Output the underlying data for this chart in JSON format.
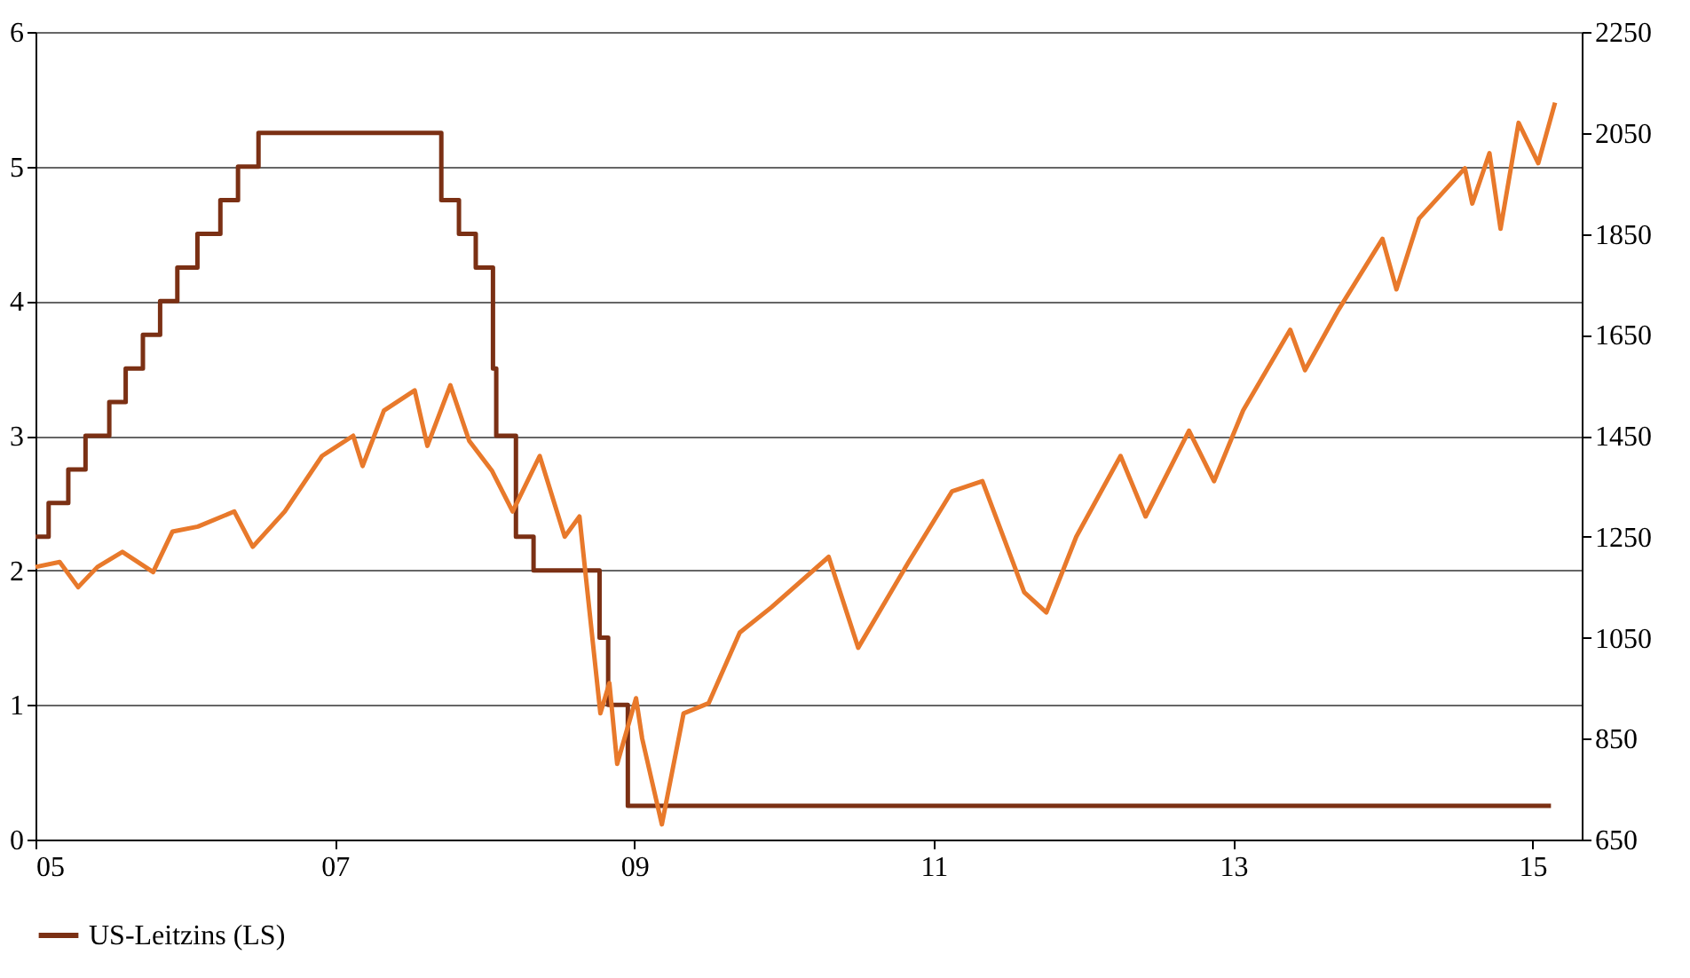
{
  "chart_data": {
    "type": "line",
    "xlim": [
      "2005-01-01",
      "2015-05-01"
    ],
    "xticks": [
      {
        "value": "2005-01-01",
        "label": "05"
      },
      {
        "value": "2007-01-01",
        "label": "07"
      },
      {
        "value": "2009-01-01",
        "label": "09"
      },
      {
        "value": "2011-01-01",
        "label": "11"
      },
      {
        "value": "2013-01-01",
        "label": "13"
      },
      {
        "value": "2015-01-01",
        "label": "15"
      }
    ],
    "ylim": [
      0,
      6
    ],
    "yticks": [
      0,
      1,
      2,
      3,
      4,
      5,
      6
    ],
    "y2lim": [
      650,
      2250
    ],
    "y2ticks": [
      650,
      850,
      1050,
      1250,
      1450,
      1650,
      1850,
      2050,
      2250
    ],
    "grid": "y",
    "legend": "bottom",
    "series": [
      {
        "name": "US-Leitzins (LS)",
        "type": "step",
        "color": "#7b3014",
        "x": [
          "2005-01-01",
          "2005-02-02",
          "2005-03-22",
          "2005-05-03",
          "2005-06-30",
          "2005-08-09",
          "2005-09-20",
          "2005-11-01",
          "2005-12-13",
          "2006-01-31",
          "2006-03-28",
          "2006-05-10",
          "2006-06-29",
          "2007-09-18",
          "2007-10-31",
          "2007-12-11",
          "2008-01-22",
          "2008-01-30",
          "2008-03-18",
          "2008-04-30",
          "2008-10-08",
          "2008-10-29",
          "2008-12-16",
          "2015-02-15"
        ],
        "values": [
          2.25,
          2.5,
          2.75,
          3,
          3.25,
          3.5,
          3.75,
          4,
          4.25,
          4.5,
          4.75,
          5,
          5.25,
          4.75,
          4.5,
          4.25,
          3.5,
          3,
          2.25,
          2,
          1.5,
          1,
          0.25,
          0.25
        ]
      },
      {
        "axis": "y2",
        "color": "#e8792b",
        "x": [
          "2005-01-01",
          "2005-03-01",
          "2005-04-15",
          "2005-06-01",
          "2005-08-01",
          "2005-10-15",
          "2005-12-01",
          "2006-02-01",
          "2006-05-01",
          "2006-06-15",
          "2006-09-01",
          "2006-12-01",
          "2007-02-15",
          "2007-03-10",
          "2007-05-01",
          "2007-07-15",
          "2007-08-15",
          "2007-10-10",
          "2007-11-25",
          "2008-01-20",
          "2008-03-10",
          "2008-05-15",
          "2008-07-15",
          "2008-08-20",
          "2008-10-10",
          "2008-11-01",
          "2008-11-20",
          "2009-01-05",
          "2009-01-20",
          "2009-03-09",
          "2009-05-01",
          "2009-07-01",
          "2009-09-15",
          "2009-12-01",
          "2010-04-20",
          "2010-07-01",
          "2010-11-01",
          "2011-02-15",
          "2011-04-30",
          "2011-08-10",
          "2011-10-03",
          "2011-12-15",
          "2012-04-01",
          "2012-06-01",
          "2012-09-15",
          "2012-11-15",
          "2013-01-25",
          "2013-05-20",
          "2013-06-25",
          "2013-09-15",
          "2013-12-31",
          "2014-02-03",
          "2014-03-30",
          "2014-07-20",
          "2014-08-07",
          "2014-09-18",
          "2014-10-15",
          "2014-11-28",
          "2015-01-15",
          "2015-02-25"
        ],
        "values": [
          1190,
          1200,
          1150,
          1190,
          1220,
          1180,
          1260,
          1270,
          1300,
          1230,
          1300,
          1410,
          1450,
          1390,
          1500,
          1540,
          1430,
          1550,
          1440,
          1380,
          1300,
          1410,
          1250,
          1290,
          900,
          960,
          800,
          930,
          850,
          680,
          900,
          920,
          1060,
          1110,
          1210,
          1030,
          1200,
          1340,
          1360,
          1140,
          1100,
          1250,
          1410,
          1290,
          1460,
          1360,
          1500,
          1660,
          1580,
          1700,
          1840,
          1740,
          1880,
          1980,
          1910,
          2010,
          1860,
          2070,
          1990,
          2110
        ]
      }
    ]
  }
}
